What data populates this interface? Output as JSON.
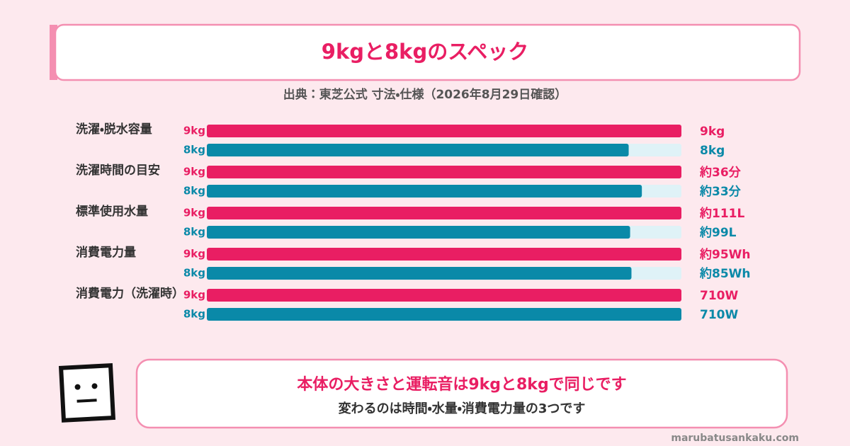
{
  "chart_data": {
    "type": "bar",
    "orientation": "horizontal",
    "title": "9kgと8kgのスペック",
    "subtitle": "出典：東芝公式 寸法・仕様（2026年8月29日確認）",
    "categories": [
      "洗濯・脱水容量",
      "洗濯時間の目安",
      "標準使用水量",
      "消費電力量",
      "消費電力（洗濯時）"
    ],
    "xlim": [
      [
        0,
        9
      ],
      [
        0,
        36
      ],
      [
        0,
        111
      ],
      [
        0,
        95
      ],
      [
        0,
        710
      ]
    ],
    "track_color": "#dff2f7",
    "series": [
      {
        "name": "9kg",
        "color": "#e91e63",
        "values": [
          9,
          36,
          111,
          95,
          710
        ],
        "value_labels": [
          "9kg",
          "約36分",
          "約111L",
          "約95Wh",
          "710W"
        ]
      },
      {
        "name": "8kg",
        "color": "#0a89a8",
        "values": [
          8,
          33,
          99,
          85,
          710
        ],
        "value_labels": [
          "8kg",
          "約33分",
          "約99L",
          "約85Wh",
          "710W"
        ]
      }
    ],
    "note": {
      "headline": "本体の大きさと運転音は9kgと8kgで同じです",
      "body": "変わるのは時間・水量・消費電力量の3つです"
    },
    "footer": "marubatusankaku.com"
  }
}
